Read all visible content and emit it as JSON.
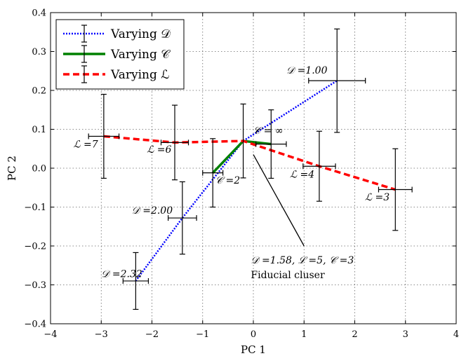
{
  "chart_data": {
    "type": "line",
    "xlabel": "PC 1",
    "ylabel": "PC 2",
    "xlim": [
      -4,
      4
    ],
    "ylim": [
      -0.4,
      0.4
    ],
    "xticks": [
      -4,
      -3,
      -2,
      -1,
      0,
      1,
      2,
      3,
      4
    ],
    "yticks": [
      -0.4,
      -0.3,
      -0.2,
      -0.1,
      0.0,
      0.1,
      0.2,
      0.3,
      0.4
    ],
    "xtick_labels": [
      "−4",
      "−3",
      "−2",
      "−1",
      "0",
      "1",
      "2",
      "3",
      "4"
    ],
    "ytick_labels": [
      "−0.4",
      "−0.3",
      "−0.2",
      "−0.1",
      "0.0",
      "0.1",
      "0.2",
      "0.3",
      "0.4"
    ],
    "grid": true,
    "legend_position": "top-left",
    "series": [
      {
        "name": "Varying 𝒟",
        "color": "#0000ff",
        "style": "dotted",
        "points": [
          {
            "x": -2.32,
            "y": -0.29,
            "xerr": 0.25,
            "yerr": 0.073
          },
          {
            "x": -1.4,
            "y": -0.128,
            "xerr": 0.28,
            "yerr": 0.093
          },
          {
            "x": -0.2,
            "y": 0.07,
            "xerr": 0.0,
            "yerr": 0.0
          },
          {
            "x": 1.65,
            "y": 0.225,
            "xerr": 0.56,
            "yerr": 0.133
          }
        ]
      },
      {
        "name": "Varying 𝒞",
        "color": "#008000",
        "style": "solid",
        "points": [
          {
            "x": -0.8,
            "y": -0.012,
            "xerr": 0.2,
            "yerr": 0.088
          },
          {
            "x": -0.2,
            "y": 0.07,
            "xerr": 0.0,
            "yerr": 0.0
          },
          {
            "x": 0.35,
            "y": 0.062,
            "xerr": 0.3,
            "yerr": 0.088
          }
        ]
      },
      {
        "name": "Varying ℒ",
        "color": "#ff0000",
        "style": "dashed",
        "points": [
          {
            "x": -2.95,
            "y": 0.082,
            "xerr": 0.3,
            "yerr": 0.108
          },
          {
            "x": -1.55,
            "y": 0.066,
            "xerr": 0.27,
            "yerr": 0.096
          },
          {
            "x": -0.2,
            "y": 0.07,
            "xerr": 0.0,
            "yerr": 0.0
          },
          {
            "x": 1.3,
            "y": 0.005,
            "xerr": 0.32,
            "yerr": 0.09
          },
          {
            "x": 2.8,
            "y": -0.055,
            "xerr": 0.33,
            "yerr": 0.105
          }
        ]
      }
    ],
    "fiducial": {
      "x": -0.2,
      "y": 0.07,
      "xerr": 0.0,
      "yerr": 0.095
    },
    "annotations": [
      {
        "text": "𝒟 =1.00",
        "x": 0.65,
        "y": 0.243
      },
      {
        "text": "𝒟 =2.00",
        "x": -2.4,
        "y": -0.117
      },
      {
        "text": "𝒟 =2.32",
        "x": -3.0,
        "y": -0.28
      },
      {
        "text": "𝒞 = ∞",
        "x": 0.0,
        "y": 0.088
      },
      {
        "text": "𝒞 =2",
        "x": -0.75,
        "y": -0.04
      },
      {
        "text": "ℒ =7",
        "x": -3.55,
        "y": 0.053
      },
      {
        "text": "ℒ =6",
        "x": -2.1,
        "y": 0.04
      },
      {
        "text": "ℒ =4",
        "x": 0.72,
        "y": -0.024
      },
      {
        "text": "ℒ =3",
        "x": 2.2,
        "y": -0.083
      },
      {
        "text": "𝒟 =1.58, ℒ =5, 𝒞 =3",
        "x": -0.05,
        "y": -0.245
      },
      {
        "text": "Fiducial cluser",
        "x": -0.05,
        "y": -0.283
      }
    ],
    "arrow": {
      "from": [
        1.0,
        -0.2
      ],
      "to": [
        0.0,
        0.035
      ]
    },
    "legend": [
      {
        "label": "Varying 𝒟",
        "color": "#0000ff",
        "style": "dotted"
      },
      {
        "label": "Varying 𝒞",
        "color": "#008000",
        "style": "solid"
      },
      {
        "label": "Varying ℒ",
        "color": "#ff0000",
        "style": "dashed"
      }
    ]
  }
}
